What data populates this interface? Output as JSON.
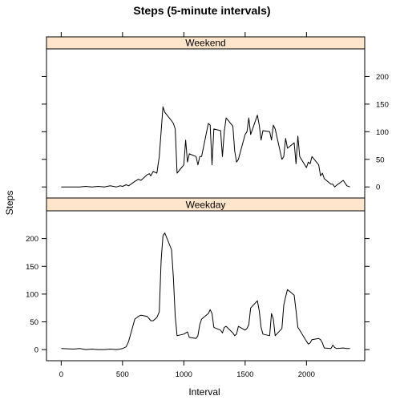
{
  "chart_data": {
    "type": "line",
    "title": "Steps (5-minute intervals)",
    "xlabel": "Interval",
    "ylabel": "Steps",
    "xlim": [
      -120,
      2475
    ],
    "ylim": [
      -20,
      250
    ],
    "x_ticks": [
      0,
      500,
      1000,
      1500,
      2000
    ],
    "y_ticks": [
      0,
      50,
      100,
      150,
      200
    ],
    "grid": false,
    "legend": "none",
    "line_color": "#000000",
    "strip_color": "#ffe5cc",
    "panels": [
      {
        "name": "Weekend",
        "x": [
          0,
          100,
          150,
          200,
          250,
          300,
          350,
          400,
          450,
          480,
          500,
          530,
          550,
          600,
          630,
          650,
          700,
          720,
          730,
          750,
          780,
          800,
          815,
          830,
          845,
          900,
          915,
          930,
          945,
          1000,
          1015,
          1030,
          1045,
          1100,
          1115,
          1130,
          1145,
          1200,
          1215,
          1230,
          1245,
          1300,
          1315,
          1330,
          1345,
          1400,
          1415,
          1430,
          1445,
          1500,
          1515,
          1530,
          1545,
          1600,
          1615,
          1630,
          1645,
          1700,
          1715,
          1730,
          1745,
          1800,
          1815,
          1830,
          1845,
          1900,
          1915,
          1930,
          1945,
          2000,
          2015,
          2030,
          2045,
          2100,
          2115,
          2130,
          2145,
          2200,
          2215,
          2230,
          2245,
          2300,
          2330,
          2355
        ],
        "y": [
          0,
          0,
          0,
          1,
          0,
          1,
          0,
          2,
          0,
          2,
          1,
          4,
          2,
          10,
          14,
          12,
          22,
          24,
          20,
          28,
          25,
          55,
          100,
          145,
          135,
          120,
          115,
          105,
          25,
          40,
          85,
          45,
          60,
          55,
          40,
          55,
          55,
          115,
          112,
          40,
          105,
          102,
          55,
          100,
          125,
          110,
          65,
          45,
          50,
          95,
          100,
          125,
          95,
          130,
          112,
          85,
          102,
          100,
          85,
          112,
          105,
          50,
          55,
          88,
          70,
          80,
          42,
          92,
          55,
          35,
          45,
          42,
          55,
          40,
          20,
          25,
          15,
          5,
          5,
          0,
          3,
          12,
          2,
          0
        ]
      },
      {
        "name": "Weekday",
        "x": [
          0,
          100,
          150,
          200,
          250,
          300,
          350,
          400,
          450,
          480,
          500,
          530,
          550,
          600,
          630,
          650,
          700,
          720,
          730,
          750,
          780,
          800,
          815,
          830,
          845,
          900,
          915,
          930,
          945,
          1000,
          1015,
          1030,
          1045,
          1100,
          1115,
          1130,
          1145,
          1200,
          1215,
          1230,
          1245,
          1300,
          1315,
          1330,
          1345,
          1400,
          1415,
          1430,
          1445,
          1500,
          1515,
          1530,
          1545,
          1600,
          1615,
          1630,
          1645,
          1700,
          1715,
          1730,
          1745,
          1800,
          1815,
          1830,
          1845,
          1900,
          1915,
          1930,
          1945,
          2000,
          2015,
          2030,
          2045,
          2100,
          2115,
          2130,
          2145,
          2200,
          2215,
          2230,
          2245,
          2300,
          2330,
          2355
        ],
        "y": [
          2,
          1,
          2,
          0,
          1,
          0,
          0,
          1,
          0,
          1,
          2,
          5,
          15,
          55,
          60,
          62,
          60,
          55,
          52,
          52,
          58,
          68,
          160,
          205,
          210,
          180,
          130,
          60,
          25,
          28,
          30,
          32,
          22,
          20,
          25,
          45,
          55,
          65,
          72,
          65,
          40,
          35,
          30,
          40,
          42,
          30,
          25,
          28,
          42,
          35,
          38,
          45,
          75,
          88,
          70,
          40,
          28,
          25,
          65,
          55,
          25,
          38,
          80,
          95,
          108,
          98,
          70,
          40,
          35,
          15,
          10,
          12,
          18,
          20,
          18,
          12,
          3,
          2,
          8,
          4,
          2,
          3,
          2,
          2
        ]
      }
    ]
  }
}
